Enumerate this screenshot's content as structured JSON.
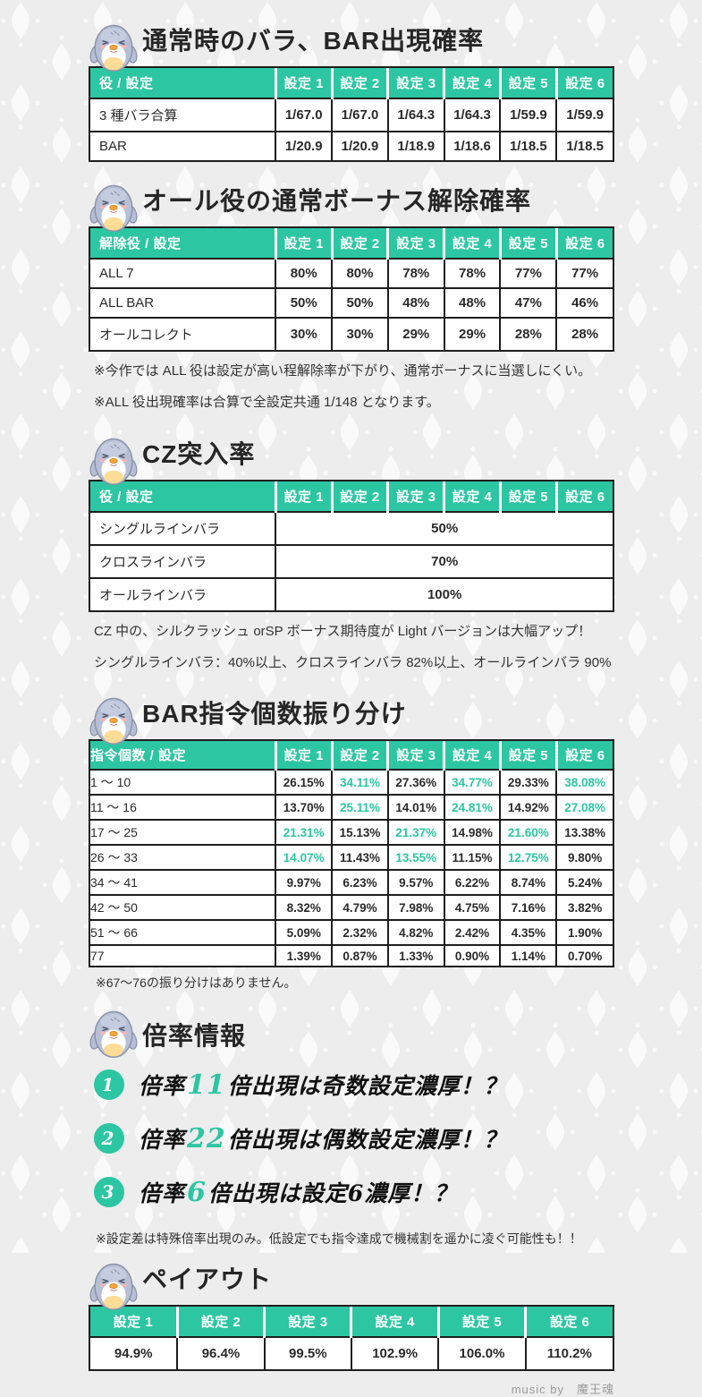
{
  "page": {
    "bg_color": "#ededee",
    "accent_color": "#2cc6a2",
    "credit": "music by　魔王魂",
    "mascot_icon": "penguin-icon"
  },
  "sections": {
    "bara": {
      "title": "通常時のバラ、BAR出現確率",
      "table": {
        "head": [
          "役 / 設定",
          "設定 1",
          "設定 2",
          "設定 3",
          "設定 4",
          "設定 5",
          "設定 6"
        ],
        "rows": [
          {
            "label": "3 種バラ合算",
            "values": [
              "1/67.0",
              "1/67.0",
              "1/64.3",
              "1/64.3",
              "1/59.9",
              "1/59.9"
            ]
          },
          {
            "label": "BAR",
            "values": [
              "1/20.9",
              "1/20.9",
              "1/18.9",
              "1/18.6",
              "1/18.5",
              "1/18.5"
            ]
          }
        ]
      }
    },
    "all_bonus": {
      "title": "オール役の通常ボーナス解除確率",
      "table": {
        "head": [
          "解除役 / 設定",
          "設定 1",
          "設定 2",
          "設定 3",
          "設定 4",
          "設定 5",
          "設定 6"
        ],
        "rows": [
          {
            "label": "ALL 7",
            "values": [
              "80%",
              "80%",
              "78%",
              "78%",
              "77%",
              "77%"
            ]
          },
          {
            "label": "ALL BAR",
            "values": [
              "50%",
              "50%",
              "48%",
              "48%",
              "47%",
              "46%"
            ]
          },
          {
            "label": "オールコレクト",
            "values": [
              "30%",
              "30%",
              "29%",
              "29%",
              "28%",
              "28%"
            ]
          }
        ]
      },
      "notes": [
        "※今作では ALL 役は設定が高い程解除率が下がり、通常ボーナスに当選しにくい。",
        "※ALL 役出現確率は合算で全設定共通 1/148 となります。"
      ]
    },
    "cz": {
      "title": "CZ突入率",
      "table": {
        "head": [
          "役 / 設定",
          "設定 1",
          "設定 2",
          "設定 3",
          "設定 4",
          "設定 5",
          "設定 6"
        ],
        "rows": [
          {
            "label": "シングルラインバラ",
            "span_value": "50%"
          },
          {
            "label": "クロスラインバラ",
            "span_value": "70%"
          },
          {
            "label": "オールラインバラ",
            "span_value": "100%"
          }
        ]
      },
      "notes": [
        "CZ 中の、シルクラッシュ orSP ボーナス期待度が Light バージョンは大幅アップ！",
        "シングルラインバラ：40%以上、クロスラインバラ 82%以上、オールラインバラ 90%"
      ]
    },
    "bar_shirei": {
      "title": "BAR指令個数振り分け",
      "table": {
        "head": [
          "指令個数 / 設定",
          "設定 1",
          "設定 2",
          "設定 3",
          "設定 4",
          "設定 5",
          "設定 6"
        ],
        "rows": [
          {
            "label": "1 ～ 10",
            "values": [
              "26.15%",
              "34.11%",
              "27.36%",
              "34.77%",
              "29.33%",
              "38.08%"
            ],
            "highlight": [
              1,
              3,
              5
            ]
          },
          {
            "label": "11 ～ 16",
            "values": [
              "13.70%",
              "25.11%",
              "14.01%",
              "24.81%",
              "14.92%",
              "27.08%"
            ],
            "highlight": [
              1,
              3,
              5
            ]
          },
          {
            "label": "17 ～ 25",
            "values": [
              "21.31%",
              "15.13%",
              "21.37%",
              "14.98%",
              "21.60%",
              "13.38%"
            ],
            "highlight": [
              0,
              2,
              4
            ]
          },
          {
            "label": "26 ～ 33",
            "values": [
              "14.07%",
              "11.43%",
              "13.55%",
              "11.15%",
              "12.75%",
              "9.80%"
            ],
            "highlight": [
              0,
              2,
              4
            ]
          },
          {
            "label": "34 ～ 41",
            "values": [
              "9.97%",
              "6.23%",
              "9.57%",
              "6.22%",
              "8.74%",
              "5.24%"
            ],
            "highlight": []
          },
          {
            "label": "42 ～ 50",
            "values": [
              "8.32%",
              "4.79%",
              "7.98%",
              "4.75%",
              "7.16%",
              "3.82%"
            ],
            "highlight": []
          },
          {
            "label": "51 ～ 66",
            "values": [
              "5.09%",
              "2.32%",
              "4.82%",
              "2.42%",
              "4.35%",
              "1.90%"
            ],
            "highlight": []
          },
          {
            "label": "77",
            "values": [
              "1.39%",
              "0.87%",
              "1.33%",
              "0.90%",
              "1.14%",
              "0.70%"
            ],
            "highlight": []
          }
        ]
      },
      "note": "※67～76の振り分けはありません。"
    },
    "bairitsu": {
      "title": "倍率情報",
      "items": [
        {
          "number": "1",
          "prefix": "倍率",
          "accent": "11",
          "suffix": "倍出現は奇数設定濃厚！？"
        },
        {
          "number": "2",
          "prefix": "倍率",
          "accent": "22",
          "suffix": "倍出現は偶数設定濃厚！？"
        },
        {
          "number": "3",
          "prefix": "倍率",
          "accent": "6",
          "suffix": "倍出現は設定6濃厚！？"
        }
      ],
      "note": "※設定差は特殊倍率出現のみ。低設定でも指令達成で機械割を遥かに凌ぐ可能性も！！"
    },
    "payout": {
      "title": "ペイアウト",
      "table": {
        "head": [
          "設定 1",
          "設定 2",
          "設定 3",
          "設定 4",
          "設定 5",
          "設定 6"
        ],
        "rows": [
          {
            "values": [
              "94.9%",
              "96.4%",
              "99.5%",
              "102.9%",
              "106.0%",
              "110.2%"
            ]
          }
        ]
      }
    }
  }
}
